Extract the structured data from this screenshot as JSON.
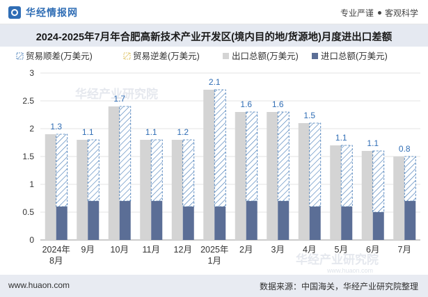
{
  "header": {
    "brand": "华经情报网",
    "tagline_left": "专业严谨",
    "tagline_right": "客观科学"
  },
  "title": "2024-2025年7月年合肥高新技术产业开发区(境内目的地/货源地)月度进出口差额",
  "watermark": "华经产业研究院",
  "watermark_url": "www.huaon.com",
  "footer": {
    "url": "www.huaon.com",
    "source": "数据来源：中国海关，华经产业研究院整理"
  },
  "colors": {
    "export": "#d4d4d4",
    "import": "#5b6e96",
    "deficit_hatch": "#3f77b5",
    "surplus_hatch": "#d9b94a",
    "label": "#2f6db5"
  },
  "chart_data": {
    "type": "bar",
    "title": "2024-2025年7月年合肥高新技术产业开发区(境内目的地/货源地)月度进出口差额",
    "categories": [
      "2024年\n8月",
      "9月",
      "10月",
      "11月",
      "12月",
      "2025年\n1月",
      "2月",
      "3月",
      "4月",
      "5月",
      "6月",
      "7月"
    ],
    "series": [
      {
        "name": "贸易顺差(万美元)",
        "values": [
          1.3,
          1.1,
          1.7,
          1.1,
          1.2,
          2.1,
          1.6,
          1.6,
          1.5,
          1.1,
          1.1,
          0.8
        ]
      },
      {
        "name": "贸易逆差(万美元)",
        "values": [
          0,
          0,
          0,
          0,
          0,
          0,
          0,
          0,
          0,
          0,
          0,
          0
        ]
      },
      {
        "name": "出口总额(万美元)",
        "values": [
          1.9,
          1.8,
          2.4,
          1.8,
          1.8,
          2.7,
          2.3,
          2.3,
          2.1,
          1.7,
          1.6,
          1.5
        ]
      },
      {
        "name": "进口总额(万美元)",
        "values": [
          0.6,
          0.7,
          0.7,
          0.7,
          0.6,
          0.6,
          0.7,
          0.7,
          0.6,
          0.6,
          0.5,
          0.7
        ]
      }
    ],
    "data_labels": [
      "1.3",
      "1.1",
      "1.7",
      "1.1",
      "1.2",
      "2.1",
      "1.6",
      "1.6",
      "1.5",
      "1.1",
      "1.1",
      "0.8"
    ],
    "ylim": [
      0,
      3
    ],
    "yticks": [
      "0",
      "0.5",
      "1",
      "1.5",
      "2",
      "2.5",
      "3"
    ],
    "xlabel": "",
    "ylabel": "",
    "legend_position": "top-left",
    "grid": true
  }
}
